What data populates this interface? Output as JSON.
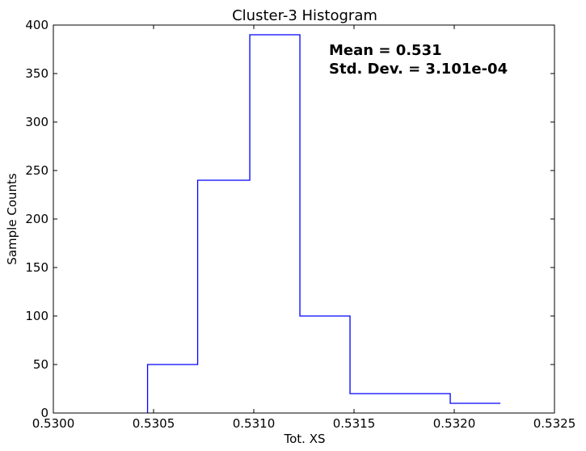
{
  "chart_data": {
    "type": "histogram",
    "title": "Cluster-3 Histogram",
    "xlabel": "Tot. XS",
    "ylabel": "Sample Counts",
    "xlim": [
      0.53,
      0.5325
    ],
    "ylim": [
      0,
      400
    ],
    "xticks": [
      0.53,
      0.5305,
      0.531,
      0.5315,
      0.532,
      0.5325
    ],
    "xtick_labels": [
      "0.5300",
      "0.5305",
      "0.5310",
      "0.5315",
      "0.5320",
      "0.5325"
    ],
    "yticks": [
      0,
      50,
      100,
      150,
      200,
      250,
      300,
      350,
      400
    ],
    "ytick_labels": [
      "0",
      "50",
      "100",
      "150",
      "200",
      "250",
      "300",
      "350",
      "400"
    ],
    "bin_edges": [
      0.53047,
      0.53072,
      0.53098,
      0.53123,
      0.53148,
      0.53173,
      0.53198,
      0.53223
    ],
    "counts": [
      50,
      240,
      390,
      100,
      20,
      20,
      10
    ],
    "histtype": "step",
    "color": "#0000ff",
    "grid": false,
    "annotations": [
      "Mean = 0.531",
      "Std. Dev. = 3.101e-04"
    ]
  }
}
